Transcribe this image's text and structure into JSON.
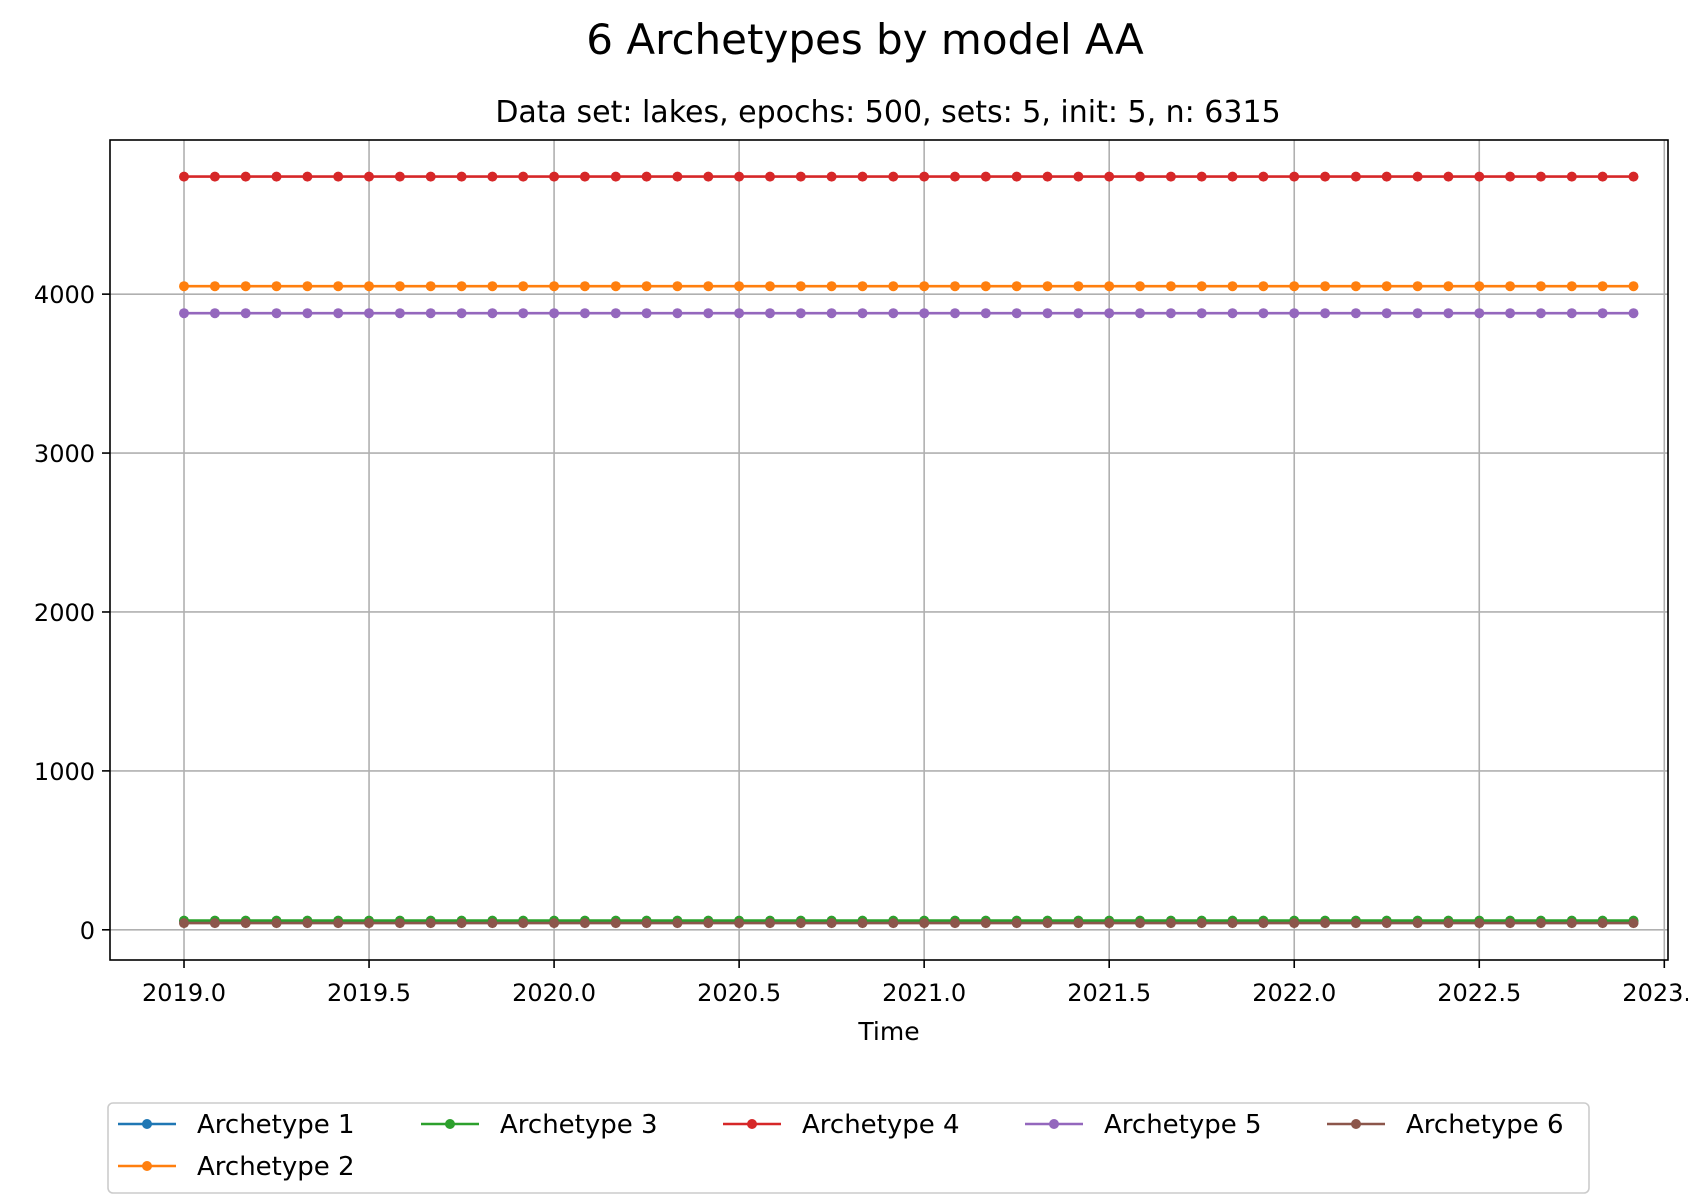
{
  "chart_data": {
    "type": "line",
    "title": "6 Archetypes by model AA",
    "subtitle": "Data set: lakes, epochs: 500, sets: 5, init: 5, n: 6315",
    "xlabel": "Time",
    "ylabel": "",
    "xlim": [
      2018.8,
      2023.01
    ],
    "ylim": [
      -190,
      4970
    ],
    "xticks": [
      2019.0,
      2019.5,
      2020.0,
      2020.5,
      2021.0,
      2021.5,
      2022.0,
      2022.5,
      2023.0
    ],
    "xtick_labels": [
      "2019.0",
      "2019.5",
      "2020.0",
      "2020.5",
      "2021.0",
      "2021.5",
      "2022.0",
      "2022.5",
      "2023.0"
    ],
    "yticks": [
      0,
      1000,
      2000,
      3000,
      4000
    ],
    "ytick_labels": [
      "0",
      "1000",
      "2000",
      "3000",
      "4000"
    ],
    "grid": true,
    "legend_position": "bottom-center",
    "x_start": 2019.0,
    "x_step": 0.0833333,
    "n_points": 48,
    "series": [
      {
        "name": "Archetype 1",
        "color": "#1f77b4",
        "value": 55,
        "marker": "circle"
      },
      {
        "name": "Archetype 2",
        "color": "#ff7f0e",
        "value": 4050,
        "marker": "circle"
      },
      {
        "name": "Archetype 3",
        "color": "#2ca02c",
        "value": 58,
        "marker": "circle"
      },
      {
        "name": "Archetype 4",
        "color": "#d62728",
        "value": 4740,
        "marker": "circle"
      },
      {
        "name": "Archetype 5",
        "color": "#9467bd",
        "value": 3880,
        "marker": "circle"
      },
      {
        "name": "Archetype 6",
        "color": "#8c564b",
        "value": 42,
        "marker": "circle"
      }
    ]
  }
}
